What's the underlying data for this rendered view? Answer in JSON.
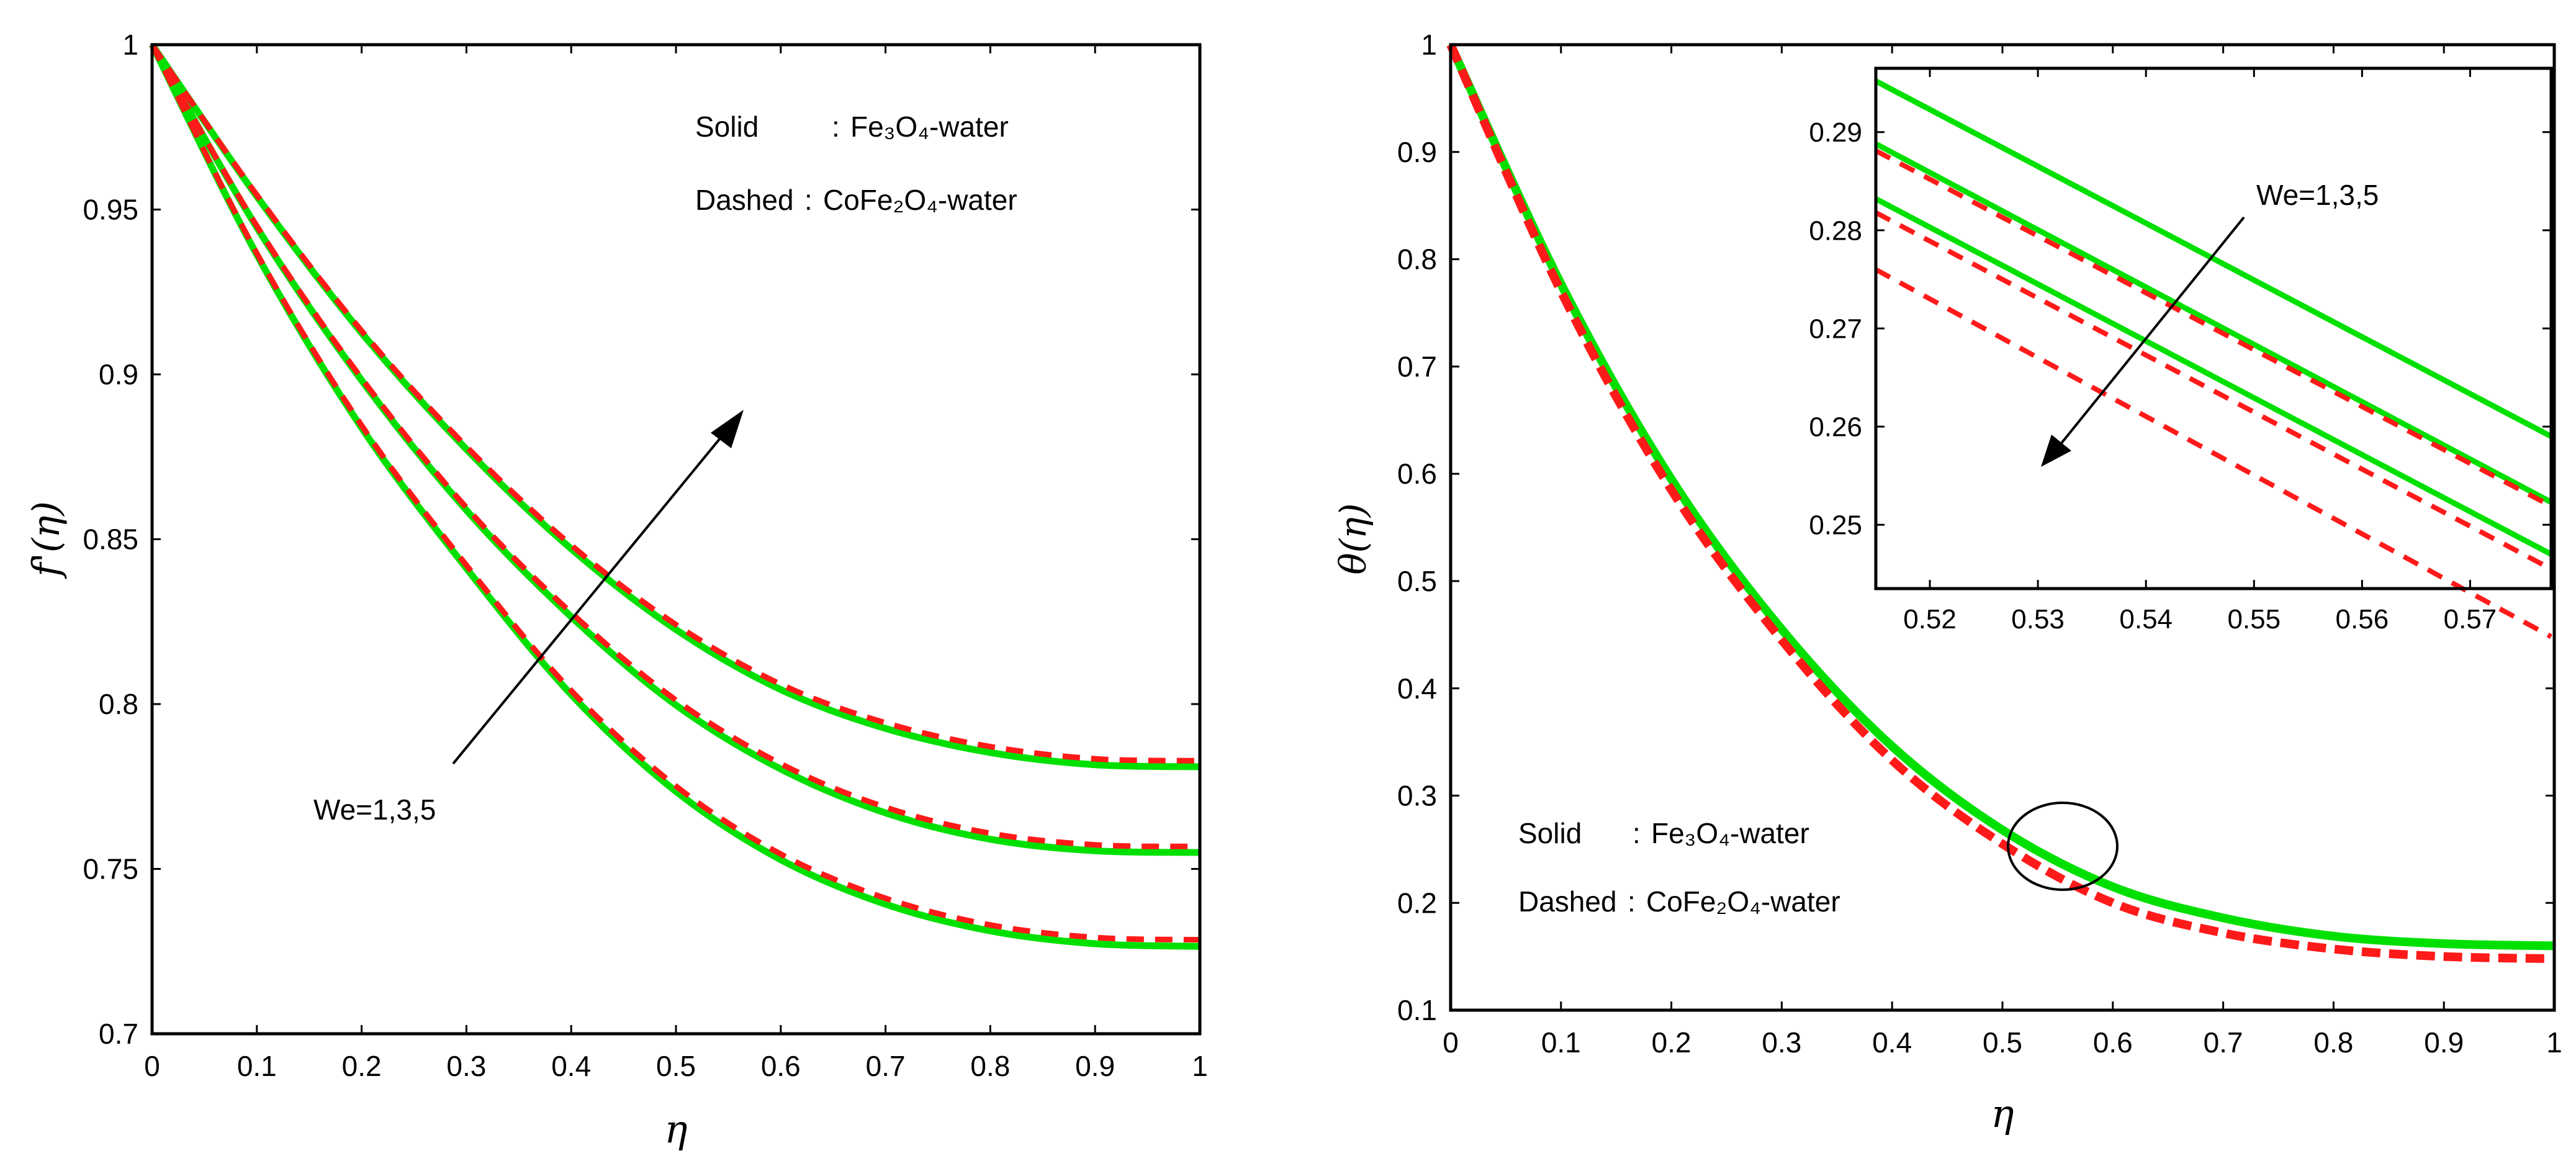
{
  "colors": {
    "solid": "#00e000",
    "dashed": "#ff1a1a",
    "axis": "#000000",
    "background": "#ffffff"
  },
  "chart_data": [
    {
      "id": "velocity",
      "type": "line",
      "xlabel": "η",
      "ylabel": "f'(η)",
      "xlim": [
        0,
        1
      ],
      "ylim": [
        0.7,
        1
      ],
      "xticks": [
        "0",
        "0.1",
        "0.2",
        "0.3",
        "0.4",
        "0.5",
        "0.6",
        "0.7",
        "0.8",
        "0.9",
        "1"
      ],
      "yticks": [
        "0.7",
        "0.75",
        "0.8",
        "0.85",
        "0.9",
        "0.95",
        "1"
      ],
      "legend": {
        "solid": {
          "label": "Solid",
          "sep": ":",
          "fluid": "Fe₃O₄-water"
        },
        "dashed": {
          "label": "Dashed",
          "sep": ":",
          "fluid": "CoFe₂O₄-water"
        }
      },
      "annotation": {
        "text": "We=1,3,5",
        "arrow_direction": "increasing"
      },
      "x": [
        0,
        0.1,
        0.2,
        0.3,
        0.4,
        0.5,
        0.6,
        0.7,
        0.8,
        0.9,
        1
      ],
      "series": [
        {
          "name": "Fe3O4-water We=1",
          "style": "solid",
          "values": [
            1.0,
            0.9363,
            0.8838,
            0.8412,
            0.8029,
            0.7735,
            0.7528,
            0.7393,
            0.7312,
            0.7273,
            0.7265
          ]
        },
        {
          "name": "Fe3O4-water We=3",
          "style": "solid",
          "values": [
            1.0,
            0.9446,
            0.8982,
            0.8588,
            0.8265,
            0.7997,
            0.7803,
            0.767,
            0.759,
            0.7555,
            0.755
          ]
        },
        {
          "name": "Fe3O4-water We=5",
          "style": "solid",
          "values": [
            1.0,
            0.954,
            0.9126,
            0.8773,
            0.8471,
            0.8226,
            0.8044,
            0.7926,
            0.7853,
            0.7816,
            0.781
          ]
        },
        {
          "name": "CoFe2O4-water We=1",
          "style": "dashed",
          "values": [
            1.0,
            0.9367,
            0.8845,
            0.8421,
            0.8041,
            0.7751,
            0.7545,
            0.7411,
            0.733,
            0.7292,
            0.7285
          ]
        },
        {
          "name": "CoFe2O4-water We=3",
          "style": "dashed",
          "values": [
            1.0,
            0.945,
            0.8988,
            0.8596,
            0.8277,
            0.8012,
            0.7819,
            0.7687,
            0.7608,
            0.7573,
            0.7568
          ]
        },
        {
          "name": "CoFe2O4-water We=5",
          "style": "dashed",
          "values": [
            1.0,
            0.9544,
            0.9132,
            0.8781,
            0.8482,
            0.8241,
            0.806,
            0.7943,
            0.7871,
            0.7834,
            0.7828
          ]
        }
      ]
    },
    {
      "id": "temperature",
      "type": "line",
      "xlabel": "η",
      "ylabel": "θ(η)",
      "xlim": [
        0,
        1
      ],
      "ylim": [
        0.1,
        1
      ],
      "xticks": [
        "0",
        "0.1",
        "0.2",
        "0.3",
        "0.4",
        "0.5",
        "0.6",
        "0.7",
        "0.8",
        "0.9",
        "1"
      ],
      "yticks": [
        "0.1",
        "0.2",
        "0.3",
        "0.4",
        "0.5",
        "0.6",
        "0.7",
        "0.8",
        "0.9",
        "1"
      ],
      "legend": {
        "solid": {
          "label": "Solid",
          "sep": ":",
          "fluid": "Fe₃O₄-water"
        },
        "dashed": {
          "label": "Dashed",
          "sep": ":",
          "fluid": "CoFe₂O₄-water"
        }
      },
      "x": [
        0,
        0.1,
        0.2,
        0.3,
        0.4,
        0.5,
        0.6,
        0.7,
        0.8,
        0.9,
        1
      ],
      "series": [
        {
          "name": "Fe3O4-water",
          "style": "solid",
          "values": [
            1.0,
            0.777,
            0.595,
            0.455,
            0.346,
            0.268,
            0.215,
            0.186,
            0.169,
            0.162,
            0.16
          ]
        },
        {
          "name": "CoFe2O4-water",
          "style": "dashed",
          "values": [
            1.0,
            0.77,
            0.585,
            0.445,
            0.333,
            0.255,
            0.2,
            0.172,
            0.157,
            0.15,
            0.148
          ]
        }
      ],
      "inset": {
        "xlim": [
          0.515,
          0.5775
        ],
        "ylim": [
          0.2435,
          0.2965
        ],
        "xticks": [
          "0.52",
          "0.53",
          "0.54",
          "0.55",
          "0.56",
          "0.57"
        ],
        "yticks": [
          "0.25",
          "0.26",
          "0.27",
          "0.28",
          "0.29"
        ],
        "annotation": {
          "text": "We=1,3,5",
          "arrow_direction": "decreasing"
        },
        "series": [
          {
            "name": "Fe3O4-water We=5",
            "style": "solid",
            "x": [
              0.515,
              0.5775
            ],
            "values": [
              0.2952,
              0.259
            ]
          },
          {
            "name": "Fe3O4-water We=3",
            "style": "solid",
            "x": [
              0.515,
              0.5775
            ],
            "values": [
              0.2888,
              0.2523
            ]
          },
          {
            "name": "Fe3O4-water We=1",
            "style": "solid",
            "x": [
              0.515,
              0.5775
            ],
            "values": [
              0.2832,
              0.247
            ]
          },
          {
            "name": "CoFe2O4-water We=5",
            "style": "dashed",
            "x": [
              0.515,
              0.5775
            ],
            "values": [
              0.2881,
              0.2519
            ]
          },
          {
            "name": "CoFe2O4-water We=3",
            "style": "dashed",
            "x": [
              0.515,
              0.5775
            ],
            "values": [
              0.2818,
              0.2455
            ]
          },
          {
            "name": "CoFe2O4-water We=1",
            "style": "dashed",
            "x": [
              0.515,
              0.5775
            ],
            "values": [
              0.276,
              0.2386
            ]
          }
        ]
      }
    }
  ]
}
